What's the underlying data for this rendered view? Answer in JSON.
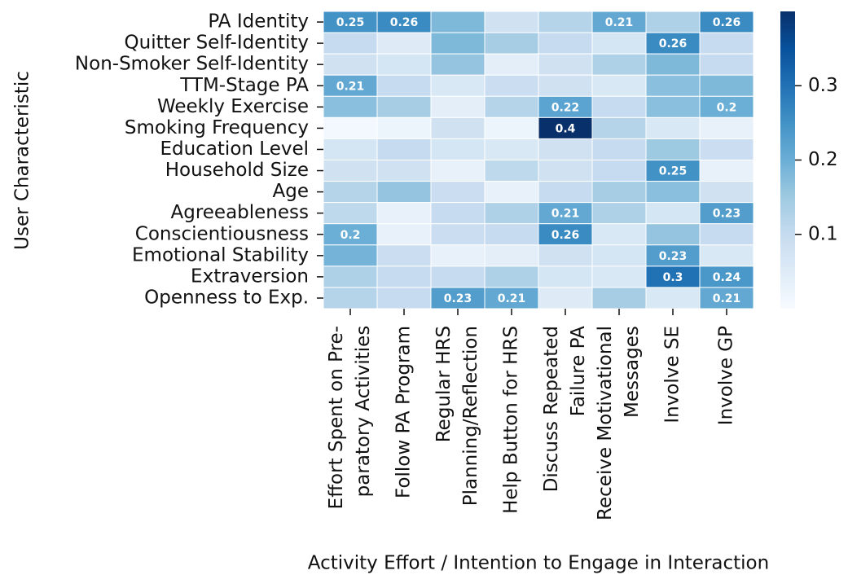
{
  "chart_data": {
    "type": "heatmap",
    "x_label": "Activity Effort / Intention to Engage in Interaction",
    "y_label": "User Characteristic",
    "x_categories": [
      "Effort Spent on Pre-\nparatory Activities",
      "Follow PA Program",
      "Regular HRS\nPlanning/Reflection",
      "Help Button for HRS",
      "Discuss Repeated\nFailure PA",
      "Receive Motivational\nMessages",
      "Involve SE",
      "Involve GP"
    ],
    "y_categories": [
      "PA Identity",
      "Quitter Self-Identity",
      "Non-Smoker Self-Identity",
      "TTM-Stage PA",
      "Weekly Exercise",
      "Smoking Frequency",
      "Education Level",
      "Household Size",
      "Age",
      "Agreeableness",
      "Conscientiousness",
      "Emotional Stability",
      "Extraversion",
      "Openness to Exp."
    ],
    "values": [
      [
        0.25,
        0.26,
        0.18,
        0.08,
        0.12,
        0.21,
        0.13,
        0.26
      ],
      [
        0.1,
        0.05,
        0.18,
        0.14,
        0.1,
        0.07,
        0.26,
        0.1
      ],
      [
        0.08,
        0.07,
        0.16,
        0.04,
        0.08,
        0.13,
        0.18,
        0.1
      ],
      [
        0.21,
        0.1,
        0.06,
        0.09,
        0.08,
        0.06,
        0.17,
        0.18
      ],
      [
        0.17,
        0.14,
        0.04,
        0.12,
        0.22,
        0.1,
        0.17,
        0.2
      ],
      [
        0.01,
        0.02,
        0.08,
        0.02,
        0.4,
        0.12,
        0.06,
        0.03
      ],
      [
        0.07,
        0.1,
        0.07,
        0.06,
        0.08,
        0.1,
        0.15,
        0.09
      ],
      [
        0.08,
        0.08,
        0.03,
        0.11,
        0.08,
        0.1,
        0.25,
        0.03
      ],
      [
        0.12,
        0.16,
        0.09,
        0.03,
        0.1,
        0.14,
        0.17,
        0.08
      ],
      [
        0.11,
        0.03,
        0.1,
        0.13,
        0.21,
        0.13,
        0.07,
        0.23
      ],
      [
        0.2,
        0.03,
        0.09,
        0.1,
        0.26,
        0.06,
        0.16,
        0.1
      ],
      [
        0.19,
        0.09,
        0.03,
        0.04,
        0.08,
        0.07,
        0.23,
        0.06
      ],
      [
        0.13,
        0.1,
        0.1,
        0.13,
        0.07,
        0.06,
        0.3,
        0.24
      ],
      [
        0.12,
        0.1,
        0.23,
        0.21,
        0.05,
        0.14,
        0.06,
        0.21
      ]
    ],
    "value_labels": [
      [
        "0.25",
        "0.26",
        null,
        null,
        null,
        "0.21",
        null,
        "0.26"
      ],
      [
        null,
        null,
        null,
        null,
        null,
        null,
        "0.26",
        null
      ],
      [
        null,
        null,
        null,
        null,
        null,
        null,
        null,
        null
      ],
      [
        "0.21",
        null,
        null,
        null,
        null,
        null,
        null,
        null
      ],
      [
        null,
        null,
        null,
        null,
        "0.22",
        null,
        null,
        "0.2"
      ],
      [
        null,
        null,
        null,
        null,
        "0.4",
        null,
        null,
        null
      ],
      [
        null,
        null,
        null,
        null,
        null,
        null,
        null,
        null
      ],
      [
        null,
        null,
        null,
        null,
        null,
        null,
        "0.25",
        null
      ],
      [
        null,
        null,
        null,
        null,
        null,
        null,
        null,
        null
      ],
      [
        null,
        null,
        null,
        null,
        "0.21",
        null,
        null,
        "0.23"
      ],
      [
        "0.2",
        null,
        null,
        null,
        "0.26",
        null,
        null,
        null
      ],
      [
        null,
        null,
        null,
        null,
        null,
        null,
        "0.23",
        null
      ],
      [
        null,
        null,
        null,
        null,
        null,
        null,
        "0.3",
        "0.24"
      ],
      [
        null,
        null,
        "0.23",
        "0.21",
        null,
        null,
        null,
        "0.21"
      ]
    ],
    "clim": [
      0,
      0.4
    ],
    "colorbar_ticks": [
      0.1,
      0.2,
      0.3
    ],
    "colorscale": [
      "#f7fbff",
      "#deebf7",
      "#c6dbef",
      "#9ecae1",
      "#6baed6",
      "#4292c6",
      "#2171b5",
      "#08519c",
      "#08306b"
    ]
  }
}
